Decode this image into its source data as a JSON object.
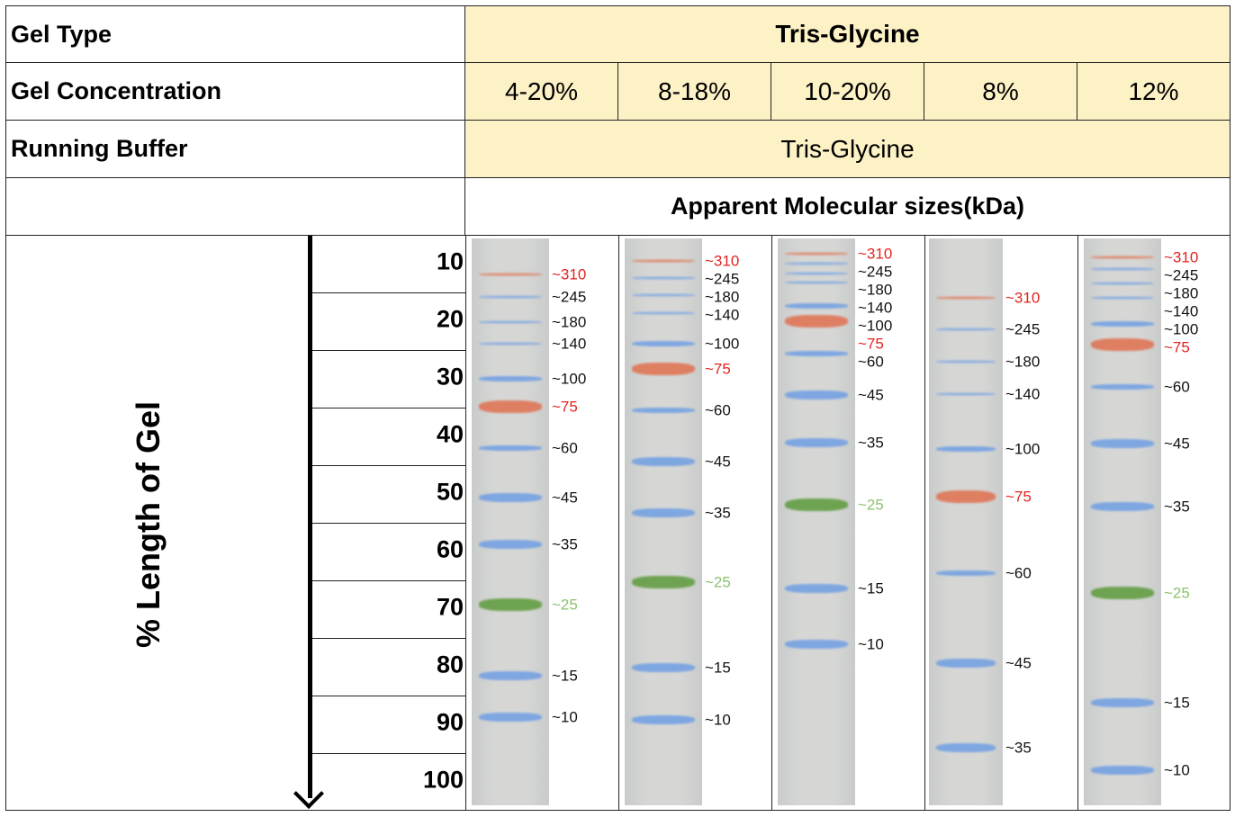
{
  "header": {
    "gel_type_label": "Gel Type",
    "gel_type_value": "Tris-Glycine",
    "gel_conc_label": "Gel Concentration",
    "running_buffer_label": "Running Buffer",
    "running_buffer_value": "Tris-Glycine",
    "sizes_title": "Apparent Molecular sizes(kDa)"
  },
  "concentrations": [
    "4-20%",
    "8-18%",
    "10-20%",
    "8%",
    "12%"
  ],
  "axis": {
    "label": "% Length of Gel",
    "ticks": [
      "10",
      "20",
      "30",
      "40",
      "50",
      "60",
      "70",
      "80",
      "90",
      "100"
    ]
  },
  "colors": {
    "red_label": "#e3231f",
    "green_label": "#8cc26e",
    "blue_band": "#6f9ee3",
    "red_band": "#e0704f",
    "green_band": "#5c9a3b"
  },
  "lanes": [
    {
      "bands": [
        {
          "label": "~310",
          "pct": 12.2,
          "c": "r"
        },
        {
          "label": "~245",
          "pct": 16.1,
          "c": "b"
        },
        {
          "label": "~180",
          "pct": 20.5,
          "c": "b"
        },
        {
          "label": "~140",
          "pct": 24.2,
          "c": "b"
        },
        {
          "label": "~100",
          "pct": 30.3,
          "c": "b"
        },
        {
          "label": "~75",
          "pct": 35.2,
          "c": "r"
        },
        {
          "label": "~60",
          "pct": 42.3,
          "c": "b"
        },
        {
          "label": "~45",
          "pct": 50.9,
          "c": "b"
        },
        {
          "label": "~35",
          "pct": 59.1,
          "c": "b"
        },
        {
          "label": "~25",
          "pct": 69.5,
          "c": "g"
        },
        {
          "label": "~15",
          "pct": 81.9,
          "c": "b"
        },
        {
          "label": "~10",
          "pct": 89.1,
          "c": "b"
        }
      ]
    },
    {
      "bands": [
        {
          "label": "~310",
          "pct": 9.8,
          "c": "r"
        },
        {
          "label": "~245",
          "pct": 12.8,
          "c": "b"
        },
        {
          "label": "~180",
          "pct": 15.8,
          "c": "b"
        },
        {
          "label": "~140",
          "pct": 18.9,
          "c": "b"
        },
        {
          "label": "~100",
          "pct": 24.2,
          "c": "b"
        },
        {
          "label": "~75",
          "pct": 28.6,
          "c": "r"
        },
        {
          "label": "~60",
          "pct": 35.8,
          "c": "b"
        },
        {
          "label": "~45",
          "pct": 44.7,
          "c": "b"
        },
        {
          "label": "~35",
          "pct": 53.6,
          "c": "b"
        },
        {
          "label": "~25",
          "pct": 65.6,
          "c": "g"
        },
        {
          "label": "~15",
          "pct": 80.5,
          "c": "b"
        },
        {
          "label": "~10",
          "pct": 89.5,
          "c": "b"
        }
      ]
    },
    {
      "bands": [
        {
          "label": "~310",
          "pct": 8.6,
          "c": "r"
        },
        {
          "label": "~245",
          "pct": 10.3,
          "c": "b"
        },
        {
          "label": "~180",
          "pct": 12.0,
          "c": "b"
        },
        {
          "label": "~140",
          "pct": 13.6,
          "c": "b"
        },
        {
          "label": "~100",
          "pct": 17.6,
          "c": "b"
        },
        {
          "label": "~75",
          "pct": 20.3,
          "c": "r"
        },
        {
          "label": "~60",
          "pct": 25.9,
          "c": "b"
        },
        {
          "label": "~45",
          "pct": 33.1,
          "c": "b"
        },
        {
          "label": "~35",
          "pct": 41.4,
          "c": "b"
        },
        {
          "label": "~25",
          "pct": 52.2,
          "c": "g"
        },
        {
          "label": "~15",
          "pct": 66.7,
          "c": "b"
        },
        {
          "label": "~10",
          "pct": 76.4,
          "c": "b"
        }
      ]
    },
    {
      "bands": [
        {
          "label": "~310",
          "pct": 16.3,
          "c": "r"
        },
        {
          "label": "~245",
          "pct": 21.7,
          "c": "b"
        },
        {
          "label": "~180",
          "pct": 27.3,
          "c": "b"
        },
        {
          "label": "~140",
          "pct": 33.0,
          "c": "b"
        },
        {
          "label": "~100",
          "pct": 42.5,
          "c": "b"
        },
        {
          "label": "~75",
          "pct": 50.8,
          "c": "r"
        },
        {
          "label": "~60",
          "pct": 64.1,
          "c": "b"
        },
        {
          "label": "~45",
          "pct": 79.7,
          "c": "b"
        },
        {
          "label": "~35",
          "pct": 94.4,
          "c": "b"
        }
      ]
    },
    {
      "bands": [
        {
          "label": "~310",
          "pct": 9.2,
          "c": "r"
        },
        {
          "label": "~245",
          "pct": 11.2,
          "c": "b"
        },
        {
          "label": "~180",
          "pct": 13.8,
          "c": "b"
        },
        {
          "label": "~140",
          "pct": 16.3,
          "c": "b"
        },
        {
          "label": "~100",
          "pct": 20.8,
          "c": "b"
        },
        {
          "label": "~75",
          "pct": 24.4,
          "c": "r"
        },
        {
          "label": "~60",
          "pct": 31.7,
          "c": "b"
        },
        {
          "label": "~45",
          "pct": 41.6,
          "c": "b"
        },
        {
          "label": "~35",
          "pct": 52.5,
          "c": "b"
        },
        {
          "label": "~25",
          "pct": 67.5,
          "c": "g"
        },
        {
          "label": "~15",
          "pct": 86.6,
          "c": "b"
        },
        {
          "label": "~10",
          "pct": 98.3,
          "c": "b"
        }
      ]
    }
  ]
}
